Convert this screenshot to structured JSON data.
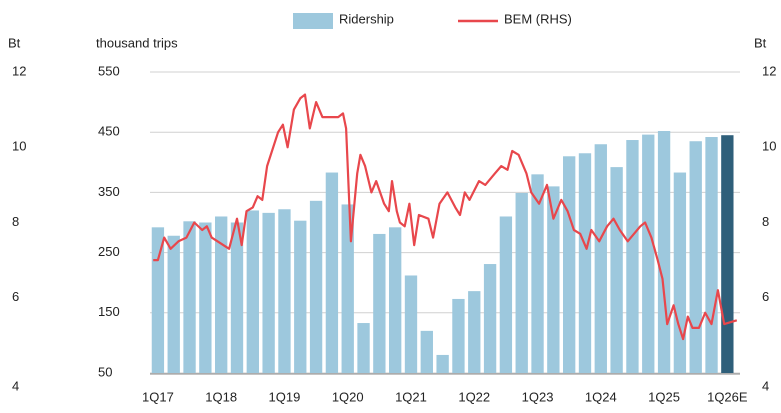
{
  "chart_data": {
    "type": "bar",
    "y_label": "thousand trips",
    "y2_label": "Bt",
    "y2_mirror_left": true,
    "categories": [
      "1Q17",
      null,
      null,
      null,
      "1Q18",
      null,
      null,
      null,
      "1Q19",
      null,
      null,
      null,
      "1Q20",
      null,
      null,
      null,
      "1Q21",
      null,
      null,
      null,
      "1Q22",
      null,
      null,
      null,
      "1Q23",
      null,
      null,
      null,
      "1Q24",
      null,
      null,
      null,
      "1Q25",
      null,
      null,
      null,
      "1Q26E"
    ],
    "xlim": [
      -0.5,
      36.8
    ],
    "ylim": [
      50,
      550
    ],
    "yticks": [
      50,
      150,
      250,
      350,
      450,
      550
    ],
    "y2lim": [
      4,
      12
    ],
    "y2ticks": [
      4,
      6,
      8,
      10,
      12
    ],
    "grid": true,
    "legend": "top",
    "series": [
      {
        "name": "Ridership",
        "type": "bar",
        "color": "#9dc8dd",
        "colors": [
          "#9dc8dd",
          "#9dc8dd",
          "#9dc8dd",
          "#9dc8dd",
          "#9dc8dd",
          "#9dc8dd",
          "#9dc8dd",
          "#9dc8dd",
          "#9dc8dd",
          "#9dc8dd",
          "#9dc8dd",
          "#9dc8dd",
          "#9dc8dd",
          "#9dc8dd",
          "#9dc8dd",
          "#9dc8dd",
          "#9dc8dd",
          "#9dc8dd",
          "#9dc8dd",
          "#9dc8dd",
          "#9dc8dd",
          "#9dc8dd",
          "#9dc8dd",
          "#9dc8dd",
          "#9dc8dd",
          "#9dc8dd",
          "#9dc8dd",
          "#9dc8dd",
          "#9dc8dd",
          "#9dc8dd",
          "#9dc8dd",
          "#9dc8dd",
          "#9dc8dd",
          "#9dc8dd",
          "#9dc8dd",
          "#9dc8dd",
          "#2f5f7a"
        ],
        "values": [
          292,
          278,
          302,
          300,
          310,
          300,
          320,
          316,
          322,
          303,
          336,
          383,
          330,
          133,
          281,
          292,
          212,
          120,
          80,
          173,
          186,
          231,
          310,
          349,
          380,
          360,
          410,
          415,
          430,
          392,
          437,
          446,
          452,
          383,
          435,
          442,
          445
        ]
      },
      {
        "name": "BEM (RHS)",
        "type": "line",
        "axis": "y2",
        "color": "#e8474c",
        "x": [
          -0.3,
          0,
          0.4,
          0.8,
          1.3,
          1.8,
          2.3,
          2.8,
          3.1,
          3.4,
          4.5,
          5,
          5.3,
          5.6,
          6.0,
          6.3,
          6.6,
          6.9,
          7.6,
          7.9,
          8.2,
          8.6,
          9.0,
          9.3,
          9.6,
          10.0,
          10.4,
          11.4,
          11.7,
          11.9,
          12.2,
          12.6,
          12.8,
          13.1,
          13.5,
          13.8,
          14.3,
          14.6,
          14.8,
          15.1,
          15.3,
          15.6,
          15.9,
          16.2,
          16.5,
          17.1,
          17.4,
          17.8,
          18.3,
          18.8,
          19.1,
          19.4,
          19.7,
          20.3,
          20.7,
          21.3,
          21.7,
          22.1,
          22.4,
          22.8,
          23.3,
          23.6,
          24.1,
          24.6,
          25,
          25.5,
          25.9,
          26.3,
          26.7,
          27.1,
          27.4,
          27.9,
          28.4,
          28.8,
          29.2,
          29.7,
          30.1,
          30.5,
          30.8,
          31.2,
          31.6,
          31.9,
          32.2,
          32.6,
          32.9,
          33.2,
          33.5,
          33.8,
          34.2,
          34.6,
          35,
          35.4,
          35.8,
          36.6
        ],
        "values": [
          7.0,
          7.0,
          7.6,
          7.3,
          7.5,
          7.6,
          8.0,
          7.8,
          7.9,
          7.6,
          7.3,
          8.1,
          7.4,
          8.3,
          8.4,
          8.7,
          8.6,
          9.5,
          10.4,
          10.6,
          10.0,
          11.0,
          11.3,
          11.4,
          10.5,
          11.2,
          10.8,
          10.8,
          10.9,
          10.5,
          7.5,
          9.3,
          9.8,
          9.5,
          8.8,
          9.1,
          8.5,
          8.3,
          9.1,
          8.3,
          8.0,
          7.9,
          8.5,
          7.4,
          8.2,
          8.1,
          7.6,
          8.5,
          8.8,
          8.4,
          8.2,
          8.8,
          8.6,
          9.1,
          9.0,
          9.3,
          9.5,
          9.4,
          9.9,
          9.8,
          9.3,
          8.8,
          8.5,
          9.0,
          8.1,
          8.6,
          8.3,
          7.8,
          7.7,
          7.3,
          7.8,
          7.5,
          7.9,
          8.1,
          7.8,
          7.5,
          7.7,
          7.9,
          8.0,
          7.6,
          7.0,
          6.5,
          5.3,
          5.8,
          5.3,
          4.9,
          5.5,
          5.2,
          5.2,
          5.6,
          5.3,
          6.2,
          5.3,
          5.4
        ]
      }
    ]
  }
}
